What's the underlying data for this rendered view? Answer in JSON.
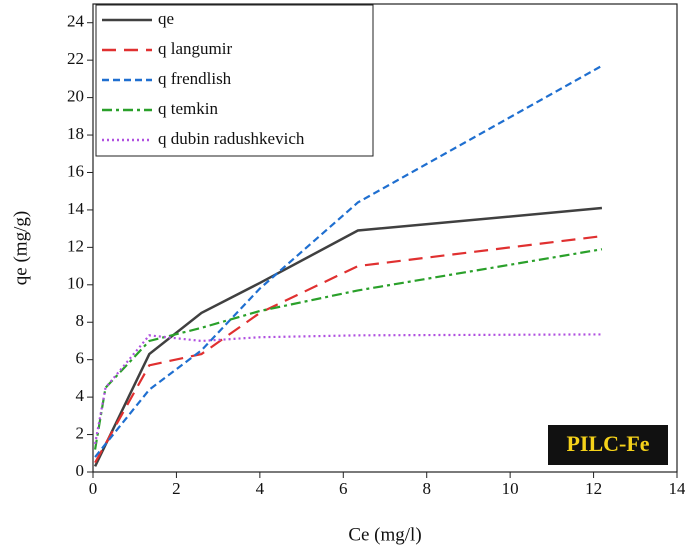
{
  "chart_data": {
    "type": "line",
    "xlabel": "Ce (mg/l)",
    "ylabel": "qe (mg/g)",
    "xlim": [
      0,
      14
    ],
    "ylim": [
      0,
      25
    ],
    "xticks": [
      0,
      2,
      4,
      6,
      8,
      10,
      12,
      14
    ],
    "yticks": [
      0,
      2,
      4,
      6,
      8,
      10,
      12,
      14,
      16,
      18,
      20,
      22,
      24
    ],
    "legend": "top-left",
    "annotation": "PILC-Fe",
    "series": [
      {
        "name": "qe",
        "color": "#404040",
        "style": "solid",
        "x": [
          0.05,
          1.35,
          2.6,
          4.0,
          6.35,
          12.2
        ],
        "values": [
          0.3,
          6.3,
          8.5,
          10.1,
          12.9,
          14.1
        ]
      },
      {
        "name": "q langumir",
        "color": "#e03030",
        "style": "dashed",
        "x": [
          0.05,
          1.35,
          2.6,
          4.0,
          6.35,
          12.2
        ],
        "values": [
          0.5,
          5.7,
          6.3,
          8.5,
          11.0,
          12.6
        ]
      },
      {
        "name": "q frendlish",
        "color": "#1f6fd0",
        "style": "dotted-dash",
        "x": [
          0.05,
          1.35,
          2.6,
          4.0,
          6.35,
          12.2
        ],
        "values": [
          0.8,
          4.4,
          6.5,
          9.8,
          14.4,
          21.7
        ]
      },
      {
        "name": "q temkin",
        "color": "#2aa02a",
        "style": "dashdot",
        "x": [
          0.05,
          0.3,
          1.35,
          2.6,
          4.0,
          6.35,
          12.2
        ],
        "values": [
          1.2,
          4.5,
          7.0,
          7.7,
          8.6,
          9.7,
          11.9
        ]
      },
      {
        "name": "q dubin radushkevich",
        "color": "#b050e0",
        "style": "dotted",
        "x": [
          0.05,
          0.3,
          1.35,
          2.6,
          4.0,
          6.35,
          12.2
        ],
        "values": [
          1.5,
          4.5,
          7.3,
          7.0,
          7.2,
          7.3,
          7.35
        ]
      }
    ]
  }
}
